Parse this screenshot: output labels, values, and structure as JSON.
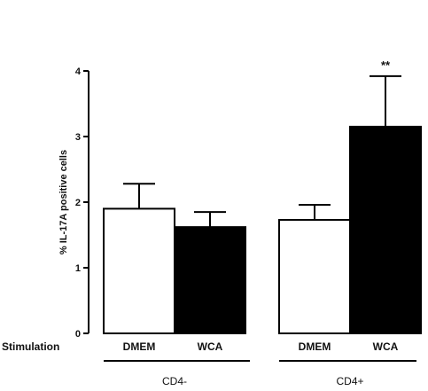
{
  "chart_data": {
    "type": "bar",
    "title": "",
    "xlabel": "",
    "ylabel": "% IL-17A positive cells",
    "ylim": [
      0,
      4
    ],
    "yticks": [
      0,
      1,
      2,
      3,
      4
    ],
    "grid": false,
    "row_label": "Stimulation",
    "groups": [
      {
        "label": "CD4-",
        "bars": [
          {
            "category": "DMEM",
            "value": 1.9,
            "error": 0.38,
            "fill": "#ffffff",
            "significance": ""
          },
          {
            "category": "WCA",
            "value": 1.62,
            "error": 0.23,
            "fill": "#000000",
            "significance": ""
          }
        ]
      },
      {
        "label": "CD4+",
        "bars": [
          {
            "category": "DMEM",
            "value": 1.73,
            "error": 0.23,
            "fill": "#ffffff",
            "significance": ""
          },
          {
            "category": "WCA",
            "value": 3.15,
            "error": 0.77,
            "fill": "#000000",
            "significance": "**"
          }
        ]
      }
    ]
  }
}
